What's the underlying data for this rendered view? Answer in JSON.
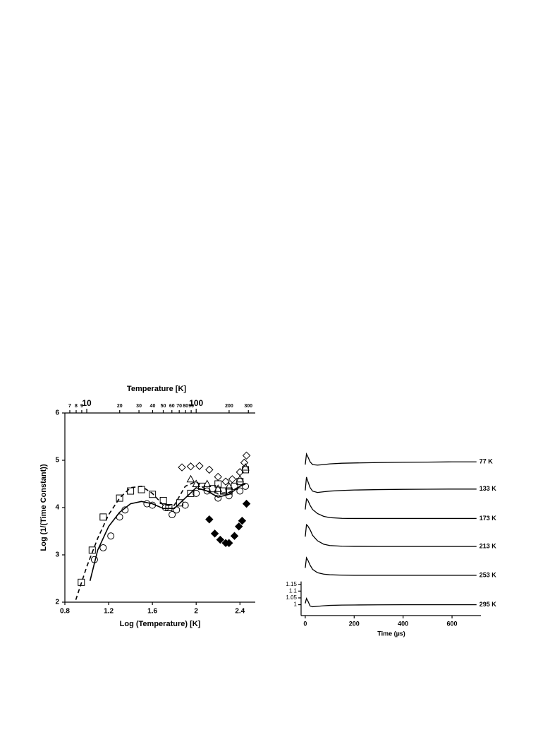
{
  "chart_data": [
    {
      "type": "scatter",
      "xlabel": "Log (Temperature) [K]",
      "ylabel": "Log (1/(Time Constant))",
      "x2label": "Temperature [K]",
      "xlim": [
        0.8,
        2.54
      ],
      "ylim": [
        2,
        6
      ],
      "xticks": [
        0.8,
        1.2,
        1.6,
        2,
        2.4
      ],
      "yticks": [
        2,
        3,
        4,
        5,
        6
      ],
      "x2ticks": [
        7,
        8,
        9,
        10,
        20,
        30,
        40,
        50,
        60,
        70,
        80,
        90,
        100,
        200,
        300
      ],
      "x2log": true,
      "series": [
        {
          "mode": "markers",
          "marker": "square",
          "color": "#000",
          "fill": "none",
          "x": [
            0.95,
            1.05,
            1.15,
            1.3,
            1.4,
            1.5,
            1.6,
            1.7,
            1.75,
            1.85,
            1.95,
            2.05,
            2.15,
            2.2,
            2.25,
            2.3,
            2.35,
            2.4,
            2.45
          ],
          "values": [
            2.42,
            3.1,
            3.8,
            4.2,
            4.35,
            4.38,
            4.28,
            4.15,
            4.0,
            4.1,
            4.3,
            4.45,
            4.4,
            4.5,
            4.35,
            4.35,
            4.45,
            4.55,
            4.8
          ]
        },
        {
          "mode": "markers",
          "marker": "circle",
          "color": "#000",
          "fill": "none",
          "x": [
            1.07,
            1.15,
            1.22,
            1.3,
            1.35,
            1.55,
            1.6,
            1.72,
            1.78,
            1.82,
            1.9,
            2.0,
            2.1,
            2.2,
            2.3,
            2.4,
            2.45
          ],
          "values": [
            2.9,
            3.15,
            3.4,
            3.8,
            3.95,
            4.08,
            4.05,
            4.0,
            3.85,
            3.95,
            4.05,
            4.3,
            4.35,
            4.2,
            4.25,
            4.35,
            4.45
          ]
        },
        {
          "mode": "markers",
          "marker": "diamond",
          "color": "#000",
          "fill": "none",
          "x": [
            1.87,
            1.95,
            2.03,
            2.12,
            2.2,
            2.27,
            2.33,
            2.4,
            2.44,
            2.46
          ],
          "values": [
            4.85,
            4.87,
            4.88,
            4.8,
            4.65,
            4.55,
            4.6,
            4.75,
            4.95,
            5.1
          ]
        },
        {
          "mode": "markers",
          "marker": "triangle",
          "color": "#000",
          "fill": "none",
          "x": [
            1.95,
            2.0,
            2.1,
            2.2,
            2.3,
            2.4,
            2.45
          ],
          "values": [
            4.6,
            4.5,
            4.5,
            4.4,
            4.45,
            4.6,
            4.85
          ]
        },
        {
          "mode": "markers",
          "marker": "diamond",
          "color": "#000",
          "fill": "#000",
          "x": [
            2.12,
            2.17,
            2.22,
            2.27,
            2.3,
            2.35,
            2.39,
            2.42,
            2.46
          ],
          "values": [
            3.75,
            3.45,
            3.32,
            3.25,
            3.25,
            3.4,
            3.6,
            3.72,
            4.08
          ]
        },
        {
          "mode": "line",
          "style": "solid",
          "color": "#000",
          "x": [
            1.03,
            1.1,
            1.2,
            1.3,
            1.4,
            1.5,
            1.6,
            1.7,
            1.8,
            1.9,
            2.0,
            2.1,
            2.2,
            2.3,
            2.4,
            2.45
          ],
          "values": [
            2.45,
            3.1,
            3.6,
            3.9,
            4.08,
            4.13,
            4.08,
            3.98,
            3.98,
            4.2,
            4.42,
            4.35,
            4.22,
            4.28,
            4.45,
            4.5
          ]
        },
        {
          "mode": "line",
          "style": "dashed",
          "color": "#000",
          "x": [
            0.9,
            1.0,
            1.1,
            1.2,
            1.3,
            1.4,
            1.5,
            1.6,
            1.7,
            1.8,
            1.9,
            2.0,
            2.1,
            2.2,
            2.3,
            2.4,
            2.45
          ],
          "values": [
            2.05,
            2.75,
            3.35,
            3.85,
            4.2,
            4.42,
            4.45,
            4.3,
            4.05,
            4.05,
            4.45,
            4.55,
            4.35,
            4.3,
            4.32,
            4.45,
            4.55
          ]
        }
      ]
    },
    {
      "type": "line",
      "xlabel": "Time (µs)",
      "xlim": [
        -17,
        718
      ],
      "ylim": [
        0.92,
        2.15
      ],
      "xticks": [
        0,
        200,
        400,
        600
      ],
      "yticks": [
        1,
        1.05,
        1.1,
        1.15
      ],
      "x": [
        0,
        5,
        10,
        20,
        30,
        50,
        75,
        100,
        150,
        200,
        300,
        400,
        500,
        600,
        700
      ],
      "series": [
        {
          "name": "77 K",
          "color": "#000",
          "values": [
            2.03,
            2.108,
            2.09,
            2.05,
            2.03,
            2.026,
            2.03,
            2.035,
            2.04,
            2.042,
            2.045,
            2.047,
            2.048,
            2.05,
            2.05
          ]
        },
        {
          "name": "133 K",
          "color": "#000",
          "values": [
            1.84,
            1.938,
            1.91,
            1.86,
            1.835,
            1.825,
            1.83,
            1.835,
            1.84,
            1.843,
            1.846,
            1.848,
            1.849,
            1.85,
            1.85
          ]
        },
        {
          "name": "173 K",
          "color": "#000",
          "values": [
            1.7,
            1.778,
            1.77,
            1.73,
            1.7,
            1.67,
            1.65,
            1.64,
            1.635,
            1.634,
            1.634,
            1.634,
            1.634,
            1.634,
            1.634
          ]
        },
        {
          "name": "213 K",
          "color": "#000",
          "values": [
            1.5,
            1.588,
            1.58,
            1.55,
            1.51,
            1.47,
            1.445,
            1.435,
            1.43,
            1.429,
            1.428,
            1.428,
            1.428,
            1.428,
            1.428
          ]
        },
        {
          "name": "253 K",
          "color": "#000",
          "values": [
            1.27,
            1.345,
            1.33,
            1.29,
            1.26,
            1.235,
            1.225,
            1.22,
            1.217,
            1.216,
            1.216,
            1.216,
            1.216,
            1.216,
            1.216
          ]
        },
        {
          "name": "295 K",
          "color": "#000",
          "values": [
            1.01,
            1.046,
            1.03,
            0.99,
            0.985,
            0.988,
            0.992,
            0.995,
            0.997,
            0.998,
            0.999,
            1.0,
            1.0,
            1.0,
            1.0
          ]
        }
      ]
    }
  ]
}
